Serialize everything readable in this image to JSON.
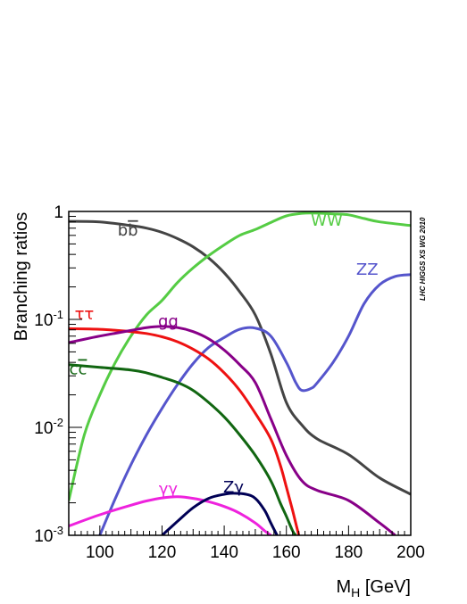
{
  "chart_data": {
    "type": "line",
    "xlabel_main": "M",
    "xlabel_sub": "H",
    "xlabel_unit": " [GeV]",
    "ylabel": "Branching ratios",
    "watermark": "LHC HIGGS XS WG 2010",
    "xlim": [
      90,
      200
    ],
    "ylim": [
      0.001,
      1
    ],
    "yscale": "log",
    "grid": false,
    "x_ticks": [
      "100",
      "120",
      "140",
      "160",
      "180",
      "200"
    ],
    "x_tick_values": [
      100,
      120,
      140,
      160,
      180,
      200
    ],
    "y_ticks": [
      {
        "base": "1",
        "exp": ""
      },
      {
        "base": "10",
        "exp": "-1"
      },
      {
        "base": "10",
        "exp": "-2"
      },
      {
        "base": "10",
        "exp": "-3"
      }
    ],
    "y_tick_values": [
      1,
      0.1,
      0.01,
      0.001
    ],
    "series": [
      {
        "name": "bb",
        "label_main": "b",
        "label_bar": "b",
        "color": "#444444",
        "points": [
          [
            90,
            0.81
          ],
          [
            100,
            0.8
          ],
          [
            110,
            0.74
          ],
          [
            115,
            0.7
          ],
          [
            120,
            0.64
          ],
          [
            125,
            0.56
          ],
          [
            130,
            0.47
          ],
          [
            135,
            0.37
          ],
          [
            140,
            0.27
          ],
          [
            145,
            0.18
          ],
          [
            150,
            0.11
          ],
          [
            155,
            0.048
          ],
          [
            160,
            0.017
          ],
          [
            165,
            0.0105
          ],
          [
            170,
            0.0078
          ],
          [
            180,
            0.0056
          ],
          [
            190,
            0.0034
          ],
          [
            200,
            0.0024
          ]
        ]
      },
      {
        "name": "WW",
        "label_main": "WW",
        "color": "#55cc44",
        "points": [
          [
            90,
            0.0021
          ],
          [
            95,
            0.0085
          ],
          [
            100,
            0.02
          ],
          [
            105,
            0.04
          ],
          [
            110,
            0.07
          ],
          [
            115,
            0.11
          ],
          [
            120,
            0.15
          ],
          [
            125,
            0.22
          ],
          [
            130,
            0.3
          ],
          [
            135,
            0.39
          ],
          [
            140,
            0.49
          ],
          [
            145,
            0.6
          ],
          [
            150,
            0.68
          ],
          [
            155,
            0.79
          ],
          [
            160,
            0.91
          ],
          [
            165,
            0.96
          ],
          [
            170,
            0.965
          ],
          [
            175,
            0.95
          ],
          [
            180,
            0.93
          ],
          [
            185,
            0.86
          ],
          [
            190,
            0.8
          ],
          [
            200,
            0.74
          ]
        ]
      },
      {
        "name": "ZZ",
        "label_main": "ZZ",
        "color": "#5555cc",
        "points": [
          [
            100,
            0.001
          ],
          [
            105,
            0.0022
          ],
          [
            110,
            0.0045
          ],
          [
            115,
            0.0085
          ],
          [
            120,
            0.015
          ],
          [
            125,
            0.025
          ],
          [
            130,
            0.039
          ],
          [
            135,
            0.055
          ],
          [
            140,
            0.068
          ],
          [
            145,
            0.081
          ],
          [
            150,
            0.083
          ],
          [
            155,
            0.07
          ],
          [
            160,
            0.04
          ],
          [
            163,
            0.026
          ],
          [
            165,
            0.022
          ],
          [
            168,
            0.023
          ],
          [
            170,
            0.026
          ],
          [
            175,
            0.04
          ],
          [
            180,
            0.07
          ],
          [
            185,
            0.14
          ],
          [
            190,
            0.21
          ],
          [
            195,
            0.25
          ],
          [
            200,
            0.26
          ]
        ]
      },
      {
        "name": "tautau",
        "label_main": "ττ",
        "color": "#ee1111",
        "points": [
          [
            90,
            0.082
          ],
          [
            100,
            0.081
          ],
          [
            110,
            0.077
          ],
          [
            115,
            0.074
          ],
          [
            120,
            0.069
          ],
          [
            125,
            0.062
          ],
          [
            130,
            0.053
          ],
          [
            135,
            0.043
          ],
          [
            140,
            0.032
          ],
          [
            145,
            0.022
          ],
          [
            150,
            0.0135
          ],
          [
            155,
            0.0078
          ],
          [
            158,
            0.0045
          ],
          [
            160,
            0.0028
          ],
          [
            162,
            0.0017
          ],
          [
            163,
            0.0013
          ],
          [
            164,
            0.001
          ]
        ]
      },
      {
        "name": "gg",
        "label_main": "gg",
        "color": "#880088",
        "points": [
          [
            90,
            0.061
          ],
          [
            100,
            0.07
          ],
          [
            110,
            0.079
          ],
          [
            115,
            0.084
          ],
          [
            120,
            0.086
          ],
          [
            125,
            0.084
          ],
          [
            130,
            0.077
          ],
          [
            135,
            0.066
          ],
          [
            140,
            0.052
          ],
          [
            145,
            0.038
          ],
          [
            150,
            0.026
          ],
          [
            155,
            0.012
          ],
          [
            160,
            0.0055
          ],
          [
            165,
            0.0032
          ],
          [
            170,
            0.0026
          ],
          [
            180,
            0.0021
          ],
          [
            190,
            0.0013
          ],
          [
            195,
            0.001
          ]
        ]
      },
      {
        "name": "cc",
        "label_main": "c",
        "label_bar": "c",
        "color": "#116611",
        "points": [
          [
            90,
            0.038
          ],
          [
            100,
            0.036
          ],
          [
            110,
            0.034
          ],
          [
            115,
            0.032
          ],
          [
            120,
            0.029
          ],
          [
            125,
            0.026
          ],
          [
            130,
            0.022
          ],
          [
            135,
            0.017
          ],
          [
            140,
            0.0125
          ],
          [
            145,
            0.0085
          ],
          [
            150,
            0.0055
          ],
          [
            155,
            0.0032
          ],
          [
            158,
            0.002
          ],
          [
            160,
            0.0015
          ],
          [
            162,
            0.0011
          ],
          [
            163,
            0.001
          ]
        ]
      },
      {
        "name": "gammagamma",
        "label_main": "γγ",
        "color": "#ee22dd",
        "points": [
          [
            90,
            0.00122
          ],
          [
            100,
            0.00155
          ],
          [
            110,
            0.0019
          ],
          [
            115,
            0.00208
          ],
          [
            120,
            0.00222
          ],
          [
            125,
            0.00228
          ],
          [
            130,
            0.0022
          ],
          [
            135,
            0.00205
          ],
          [
            140,
            0.00185
          ],
          [
            145,
            0.0016
          ],
          [
            150,
            0.0013
          ],
          [
            153,
            0.0011
          ],
          [
            155,
            0.001
          ]
        ]
      },
      {
        "name": "Zgamma",
        "label_main": "Zγ",
        "color": "#000055",
        "points": [
          [
            120,
            0.001
          ],
          [
            125,
            0.00135
          ],
          [
            130,
            0.0018
          ],
          [
            135,
            0.0022
          ],
          [
            140,
            0.0024
          ],
          [
            143,
            0.00245
          ],
          [
            147,
            0.0024
          ],
          [
            150,
            0.0022
          ],
          [
            153,
            0.0017
          ],
          [
            155,
            0.0013
          ],
          [
            157,
            0.001
          ]
        ]
      }
    ]
  }
}
